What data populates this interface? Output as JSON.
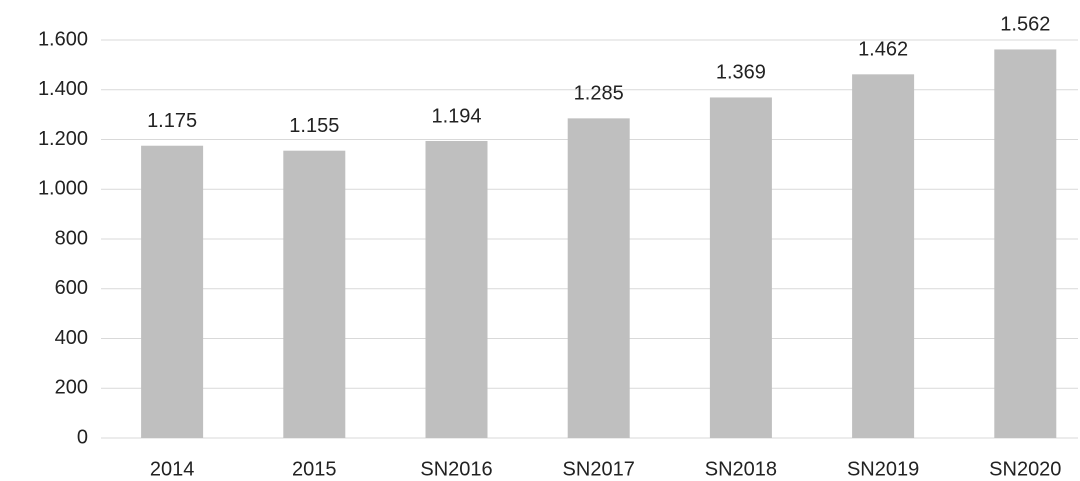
{
  "chart_data": {
    "type": "bar",
    "categories": [
      "2014",
      "2015",
      "SN2016",
      "SN2017",
      "SN2018",
      "SN2019",
      "SN2020"
    ],
    "values": [
      1175,
      1155,
      1194,
      1285,
      1369,
      1462,
      1562
    ],
    "value_labels": [
      "1.175",
      "1.155",
      "1.194",
      "1.285",
      "1.369",
      "1.462",
      "1.562"
    ],
    "color": "#bfbfbf",
    "ylim": [
      0,
      1600
    ],
    "yticks": [
      0,
      200,
      400,
      600,
      800,
      {
        "value": 1000,
        "label": "1.000"
      },
      {
        "value": 1200,
        "label": "1.200"
      },
      {
        "value": 1400,
        "label": "1.400"
      },
      {
        "value": 1600,
        "label": "1.600"
      }
    ],
    "grid": true
  }
}
